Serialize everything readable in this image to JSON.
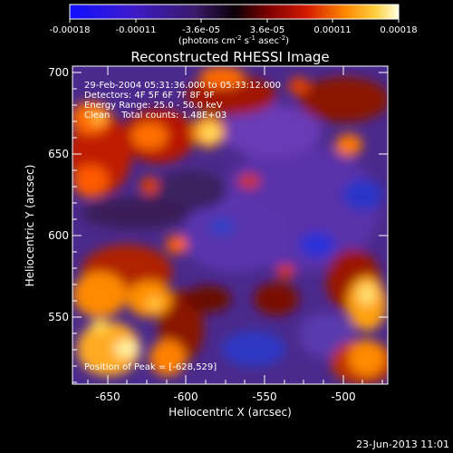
{
  "colorbar": {
    "tick_labels": [
      "-0.00018",
      "-0.00011",
      "-3.6e-05",
      "3.6e-05",
      "0.00011",
      "0.00018"
    ],
    "units_main": "(photons cm",
    "units_exp1": "-2",
    "units_mid": " s",
    "units_exp2": "-1",
    "units_end": " asec",
    "units_exp3": "-2",
    "units_close": ")"
  },
  "plot": {
    "title": "Reconstructed RHESSI Image",
    "xlabel": "Heliocentric X (arcsec)",
    "ylabel": "Heliocentric Y (arcsec)",
    "x_ticks": [
      "-650",
      "-600",
      "-550",
      "-500"
    ],
    "y_ticks": [
      "700",
      "650",
      "600",
      "550"
    ],
    "xlim": [
      -672,
      -473
    ],
    "ylim": [
      509,
      704
    ]
  },
  "annotations": {
    "time_range": "29-Feb-2004 05:31:36.000 to 05:33:12.000",
    "detectors": "Detectors: 4F 5F 6F 7F 8F 9F",
    "energy": "Energy Range: 25.0 - 50.0 keV",
    "clean": "Clean    Total counts: 1.48E+03",
    "peak": "Position of Peak = [-628,529]"
  },
  "footer": {
    "date": "23-Jun-2013 11:01"
  }
}
